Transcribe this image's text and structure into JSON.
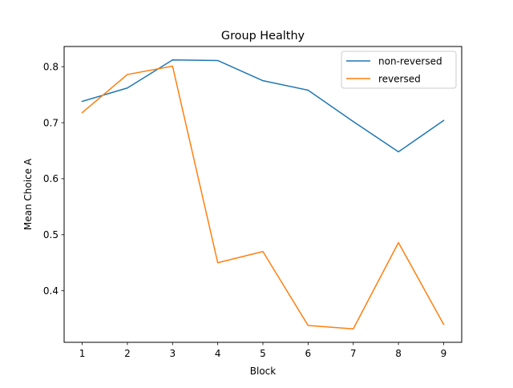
{
  "chart_data": {
    "type": "line",
    "title": "Group Healthy",
    "xlabel": "Block",
    "ylabel": "Mean Choice A",
    "x": [
      1,
      2,
      3,
      4,
      5,
      6,
      7,
      8,
      9
    ],
    "xticks": [
      "1",
      "2",
      "3",
      "4",
      "5",
      "6",
      "7",
      "8",
      "9"
    ],
    "yticks": [
      "0.4",
      "0.5",
      "0.6",
      "0.7",
      "0.8"
    ],
    "ytick_values": [
      0.4,
      0.5,
      0.6,
      0.7,
      0.8
    ],
    "xlim": [
      0.6,
      9.4
    ],
    "ylim": [
      0.308,
      0.836
    ],
    "grid": false,
    "legend_position": "top-right",
    "series": [
      {
        "name": "non-reversed",
        "color": "#1f77b4",
        "values": [
          0.738,
          0.762,
          0.812,
          0.811,
          0.775,
          0.758,
          0.702,
          0.648,
          0.704
        ]
      },
      {
        "name": "reversed",
        "color": "#ff7f0e",
        "values": [
          0.718,
          0.786,
          0.801,
          0.45,
          0.47,
          0.338,
          0.332,
          0.486,
          0.34
        ]
      }
    ]
  }
}
